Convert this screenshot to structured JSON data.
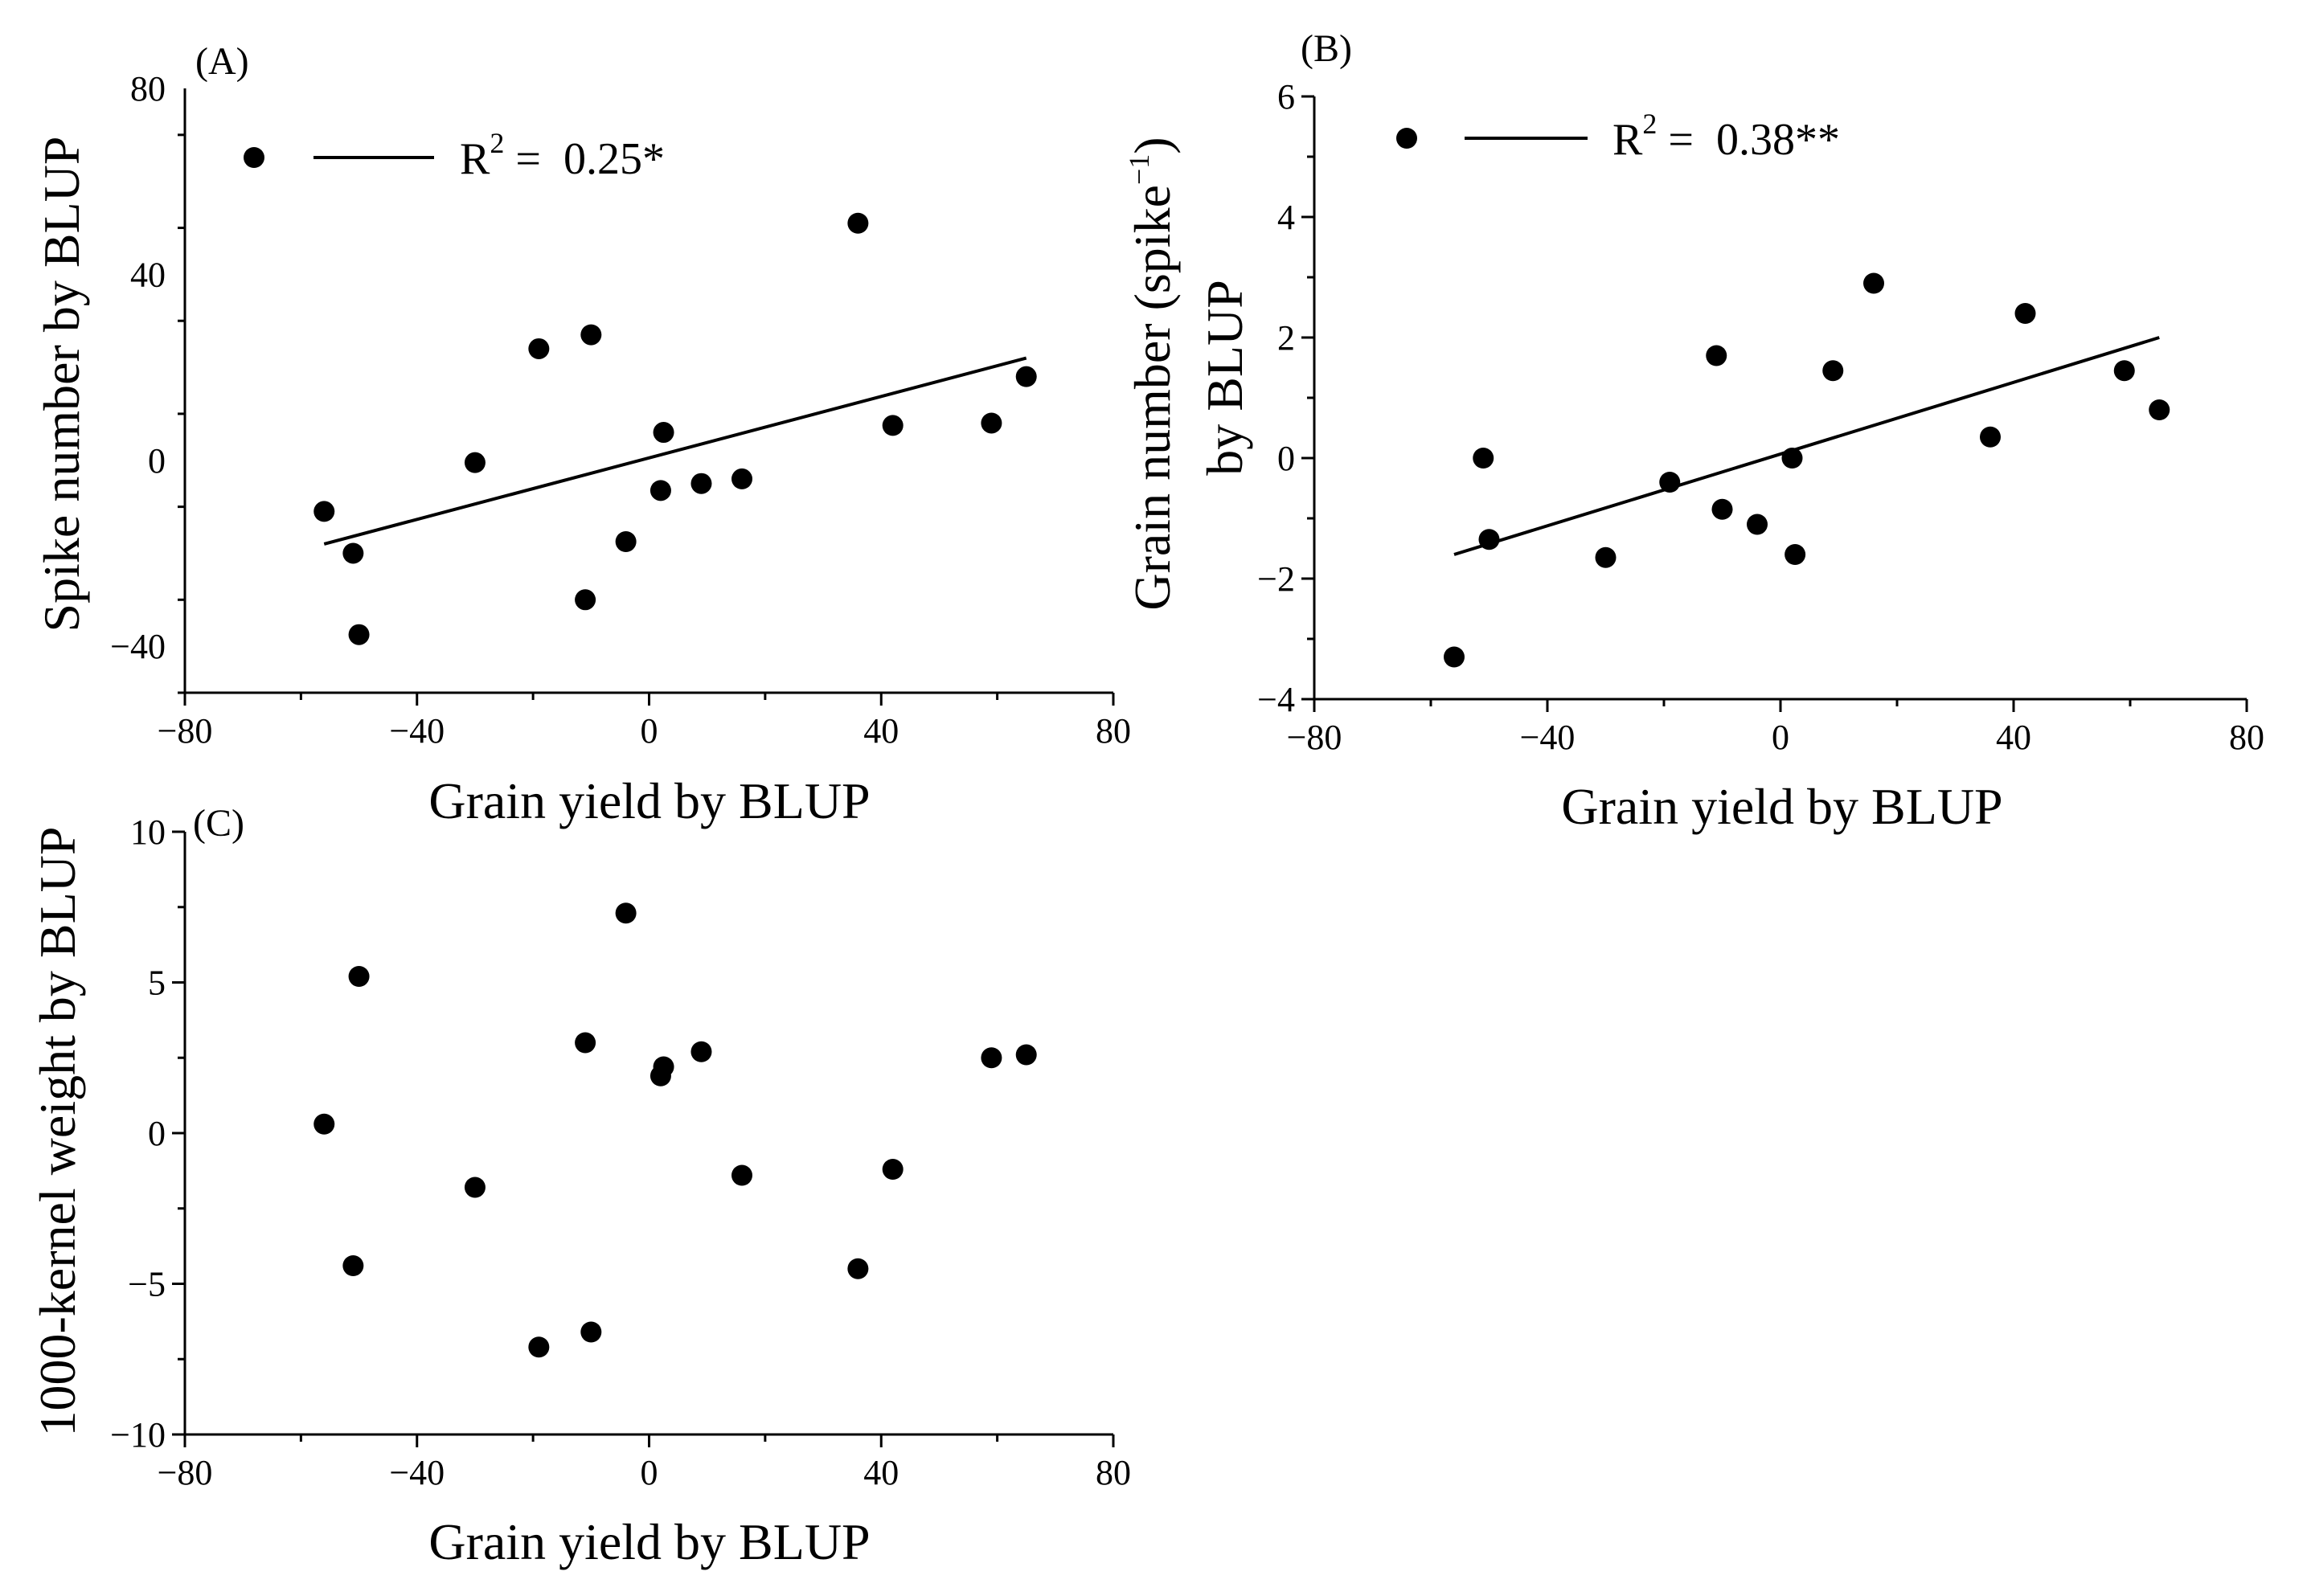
{
  "chart_data": [
    {
      "panel": "(A)",
      "type": "scatter",
      "xlabel": "Grain yield by BLUP",
      "ylabel": "Spike number by BLUP",
      "xlim": [
        -80,
        80
      ],
      "ylim": [
        -50,
        80
      ],
      "xticks": [
        -80,
        -40,
        0,
        40,
        80
      ],
      "yticks": [
        -40,
        0,
        40,
        80
      ],
      "xtick_labels": [
        "−80",
        "−40",
        "0",
        "40",
        "80"
      ],
      "ytick_labels": [
        "−40",
        "0",
        "40",
        "80"
      ],
      "x": [
        -56,
        -51,
        -50,
        -30,
        -19,
        -11,
        -10,
        -4,
        2,
        2.5,
        9,
        16,
        36,
        42,
        59,
        65
      ],
      "y": [
        -11,
        -20,
        -37.5,
        -0.5,
        24,
        -30,
        27,
        -17.5,
        -6.5,
        6,
        -5,
        -4,
        51,
        7.5,
        8,
        18
      ],
      "fit": {
        "x": [
          -56,
          65
        ],
        "y": [
          -18,
          22
        ]
      },
      "legend": {
        "r2_label": "R",
        "r2_sup": "2",
        "r2_value": " =  0.25*"
      }
    },
    {
      "panel": "(B)",
      "type": "scatter",
      "xlabel": "Grain yield by BLUP",
      "ylabel_line1": "Grain number (spike",
      "ylabel_sup": "−1",
      "ylabel_close": ")",
      "ylabel_line2": "by BLUP",
      "xlim": [
        -80,
        80
      ],
      "ylim": [
        -4,
        6
      ],
      "xticks": [
        -80,
        -40,
        0,
        40,
        80
      ],
      "yticks": [
        -4,
        -2,
        0,
        2,
        4,
        6
      ],
      "xtick_labels": [
        "−80",
        "−40",
        "0",
        "40",
        "80"
      ],
      "ytick_labels": [
        "−4",
        "−2",
        "0",
        "2",
        "4",
        "6"
      ],
      "x": [
        -56,
        -51,
        -50,
        -30,
        -19,
        -11,
        -10,
        -4,
        2,
        2.5,
        9,
        16,
        36,
        42,
        59,
        65
      ],
      "y": [
        -3.3,
        0,
        -1.35,
        -1.65,
        -0.4,
        1.7,
        -0.85,
        -1.1,
        0,
        -1.6,
        1.45,
        2.9,
        0.35,
        2.4,
        1.45,
        0.8
      ],
      "fit": {
        "x": [
          -56,
          65
        ],
        "y": [
          -1.6,
          2.0
        ]
      },
      "legend": {
        "r2_label": "R",
        "r2_sup": "2",
        "r2_value": " =  0.38**"
      }
    },
    {
      "panel": "(C)",
      "type": "scatter",
      "xlabel": "Grain yield by BLUP",
      "ylabel": "1000-kernel weight by BLUP",
      "xlim": [
        -80,
        80
      ],
      "ylim": [
        -10,
        10
      ],
      "xticks": [
        -80,
        -40,
        0,
        40,
        80
      ],
      "yticks": [
        -10,
        -5,
        0,
        5,
        10
      ],
      "xtick_labels": [
        "−80",
        "−40",
        "0",
        "40",
        "80"
      ],
      "ytick_labels": [
        "−10",
        "−5",
        "0",
        "5",
        "10"
      ],
      "x": [
        -56,
        -51,
        -50,
        -30,
        -19,
        -11,
        -10,
        -4,
        2,
        2.5,
        9,
        16,
        36,
        42,
        59,
        65
      ],
      "y": [
        0.3,
        -4.4,
        5.2,
        -1.8,
        -7.1,
        3.0,
        -6.6,
        7.3,
        1.9,
        2.2,
        2.7,
        -1.4,
        -4.5,
        -1.2,
        2.5,
        2.6
      ]
    }
  ]
}
